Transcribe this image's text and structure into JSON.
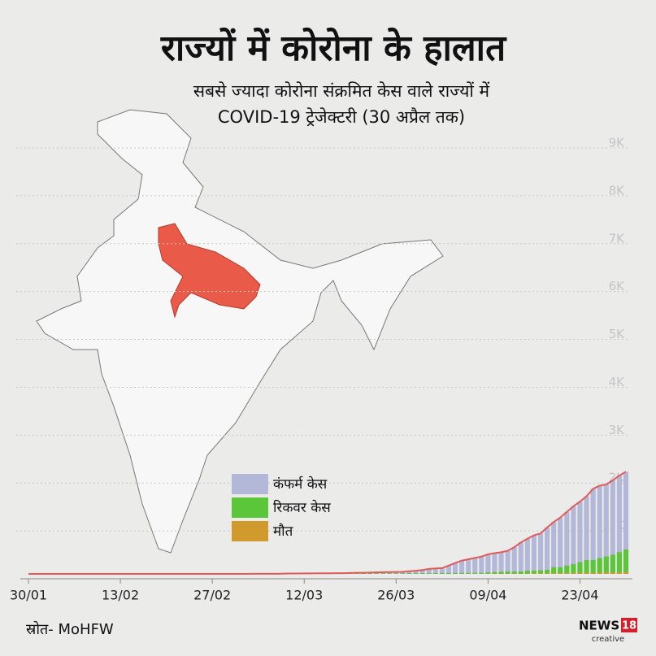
{
  "chart_data": {
    "type": "bar",
    "title": "राज्यों में कोरोना के हालात",
    "subtitle": [
      "सबसे ज्यादा कोरोना संक्रमित केस वाले राज्यों में",
      "COVID-19 ट्रेजेक्टरी (30 अप्रैल तक)"
    ],
    "categories": [
      "30/01",
      null,
      null,
      null,
      null,
      null,
      null,
      null,
      null,
      null,
      null,
      null,
      null,
      null,
      "13/02",
      null,
      null,
      null,
      null,
      null,
      null,
      null,
      null,
      null,
      null,
      null,
      null,
      null,
      "27/02",
      null,
      null,
      null,
      null,
      null,
      null,
      null,
      null,
      null,
      null,
      null,
      null,
      null,
      "12/03",
      null,
      null,
      null,
      null,
      null,
      null,
      null,
      null,
      null,
      null,
      null,
      null,
      null,
      "26/03",
      null,
      null,
      null,
      null,
      null,
      null,
      null,
      null,
      null,
      null,
      null,
      null,
      null,
      "09/04",
      null,
      null,
      null,
      null,
      null,
      null,
      null,
      null,
      null,
      null,
      null,
      null,
      null,
      "23/04",
      null,
      null,
      null,
      null,
      null,
      null,
      null
    ],
    "series": [
      {
        "name": "कंफर्म केस",
        "color": "#b3b8d8",
        "values": [
          0,
          0,
          0,
          0,
          0,
          0,
          0,
          0,
          0,
          0,
          0,
          0,
          0,
          0,
          0,
          0,
          0,
          0,
          0,
          0,
          0,
          0,
          0,
          0,
          0,
          0,
          0,
          0,
          0,
          0,
          0,
          0,
          0,
          0,
          1,
          1,
          1,
          1,
          1,
          6,
          8,
          9,
          11,
          11,
          12,
          13,
          13,
          15,
          16,
          19,
          23,
          24,
          28,
          33,
          35,
          37,
          41,
          42,
          55,
          66,
          82,
          103,
          113,
          121,
          174,
          227,
          278,
          305,
          332,
          361,
          410,
          433,
          452,
          483,
          558,
          657,
          735,
          805,
          846,
          969,
          1084,
          1176,
          1294,
          1412,
          1510,
          1621,
          1778,
          1843,
          1868,
          1955,
          2053,
          2134
        ]
      },
      {
        "name": "रिकवर केस",
        "color": "#5cc63a",
        "values": [
          0,
          0,
          0,
          0,
          0,
          0,
          0,
          0,
          0,
          0,
          0,
          0,
          0,
          0,
          0,
          0,
          0,
          0,
          0,
          0,
          0,
          0,
          0,
          0,
          0,
          0,
          0,
          0,
          0,
          0,
          0,
          0,
          0,
          0,
          0,
          0,
          0,
          0,
          0,
          0,
          0,
          0,
          0,
          0,
          0,
          5,
          5,
          5,
          9,
          9,
          9,
          9,
          9,
          11,
          11,
          11,
          11,
          11,
          14,
          14,
          14,
          14,
          17,
          17,
          17,
          19,
          21,
          21,
          21,
          21,
          31,
          36,
          45,
          49,
          49,
          49,
          68,
          68,
          75,
          86,
          140,
          140,
          173,
          206,
          247,
          289,
          289,
          332,
          364,
          400,
          456,
          510
        ]
      },
      {
        "name": "मौत",
        "color": "#d19a2c",
        "values": [
          0,
          0,
          0,
          0,
          0,
          0,
          0,
          0,
          0,
          0,
          0,
          0,
          0,
          0,
          0,
          0,
          0,
          0,
          0,
          0,
          0,
          0,
          0,
          0,
          0,
          0,
          0,
          0,
          0,
          0,
          0,
          0,
          0,
          0,
          0,
          0,
          0,
          0,
          0,
          0,
          0,
          0,
          0,
          0,
          0,
          0,
          0,
          0,
          0,
          0,
          0,
          0,
          0,
          0,
          0,
          0,
          0,
          0,
          0,
          0,
          0,
          0,
          2,
          2,
          2,
          2,
          3,
          3,
          3,
          4,
          4,
          5,
          5,
          5,
          6,
          6,
          9,
          11,
          13,
          14,
          17,
          18,
          20,
          21,
          24,
          25,
          27,
          29,
          31,
          31,
          34,
          39
        ]
      }
    ],
    "line_color": "#e05a5a",
    "ylim": [
      0,
      9000
    ],
    "yticks": [
      {
        "value": 1000,
        "label": "1K"
      },
      {
        "value": 2000,
        "label": "2K"
      },
      {
        "value": 3000,
        "label": "3K"
      },
      {
        "value": 4000,
        "label": "4K"
      },
      {
        "value": 5000,
        "label": "5K"
      },
      {
        "value": 6000,
        "label": "6K"
      },
      {
        "value": 7000,
        "label": "7K"
      },
      {
        "value": 8000,
        "label": "8K"
      },
      {
        "value": 9000,
        "label": "9K"
      }
    ],
    "grid": true
  },
  "source": "स्रोत- MoHFW",
  "logo": {
    "text": "NEWS",
    "number": "18",
    "sub": "creative"
  }
}
